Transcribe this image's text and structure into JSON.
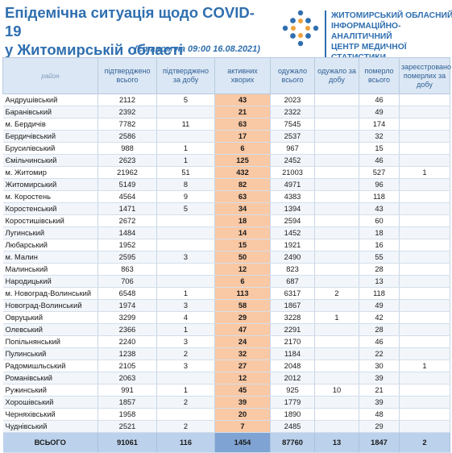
{
  "header": {
    "title_line1": "Епідемічна ситуація щодо COVID-19",
    "title_line2": "у Житомирській області",
    "status": "(станом на 09:00 16.08.2021)"
  },
  "org": {
    "line1": "ЖИТОМИРСЬКИЙ ОБЛАСНИЙ",
    "line2": "ІНФОРМАЦІЙНО-АНАЛІТИЧНИЙ",
    "line3": "ЦЕНТР МЕДИЧНОЇ СТАТИСТИКИ",
    "logo_icon": "diamond-dots-logo-icon",
    "colors": {
      "blue": "#2f6fb0",
      "orange": "#f2a23a"
    }
  },
  "table": {
    "headers": {
      "rayon": "район",
      "confirmed": "підтверджено всього",
      "confirmed_day": "підтверджено за добу",
      "active": "активних хворих",
      "recovered": "одужало всього",
      "recovered_day": "одужало за добу",
      "died": "померло всього",
      "died_registered": "зареєстровано померлих за добу"
    },
    "colors": {
      "active_cells": "#f9c8a4",
      "total_active": "#7fa3d3",
      "header_bg": "#dbe7f4"
    },
    "rows": [
      {
        "name": "Андрушівський",
        "confirmed": "2112",
        "confirmed_day": "5",
        "active": "43",
        "recovered": "2023",
        "recovered_day": "",
        "died": "46",
        "died_day": ""
      },
      {
        "name": "Баранівський",
        "confirmed": "2392",
        "confirmed_day": "",
        "active": "21",
        "recovered": "2322",
        "recovered_day": "",
        "died": "49",
        "died_day": ""
      },
      {
        "name": "м. Бердичів",
        "confirmed": "7782",
        "confirmed_day": "11",
        "active": "63",
        "recovered": "7545",
        "recovered_day": "",
        "died": "174",
        "died_day": ""
      },
      {
        "name": "Бердичівський",
        "confirmed": "2586",
        "confirmed_day": "",
        "active": "17",
        "recovered": "2537",
        "recovered_day": "",
        "died": "32",
        "died_day": ""
      },
      {
        "name": "Брусилівський",
        "confirmed": "988",
        "confirmed_day": "1",
        "active": "6",
        "recovered": "967",
        "recovered_day": "",
        "died": "15",
        "died_day": ""
      },
      {
        "name": "Ємільчинський",
        "confirmed": "2623",
        "confirmed_day": "1",
        "active": "125",
        "recovered": "2452",
        "recovered_day": "",
        "died": "46",
        "died_day": ""
      },
      {
        "name": "м. Житомир",
        "confirmed": "21962",
        "confirmed_day": "51",
        "active": "432",
        "recovered": "21003",
        "recovered_day": "",
        "died": "527",
        "died_day": "1"
      },
      {
        "name": "Житомирський",
        "confirmed": "5149",
        "confirmed_day": "8",
        "active": "82",
        "recovered": "4971",
        "recovered_day": "",
        "died": "96",
        "died_day": ""
      },
      {
        "name": "м. Коростень",
        "confirmed": "4564",
        "confirmed_day": "9",
        "active": "63",
        "recovered": "4383",
        "recovered_day": "",
        "died": "118",
        "died_day": ""
      },
      {
        "name": "Коростенський",
        "confirmed": "1471",
        "confirmed_day": "5",
        "active": "34",
        "recovered": "1394",
        "recovered_day": "",
        "died": "43",
        "died_day": ""
      },
      {
        "name": "Коростишівський",
        "confirmed": "2672",
        "confirmed_day": "",
        "active": "18",
        "recovered": "2594",
        "recovered_day": "",
        "died": "60",
        "died_day": ""
      },
      {
        "name": "Лугинський",
        "confirmed": "1484",
        "confirmed_day": "",
        "active": "14",
        "recovered": "1452",
        "recovered_day": "",
        "died": "18",
        "died_day": ""
      },
      {
        "name": "Любарський",
        "confirmed": "1952",
        "confirmed_day": "",
        "active": "15",
        "recovered": "1921",
        "recovered_day": "",
        "died": "16",
        "died_day": ""
      },
      {
        "name": "м. Малин",
        "confirmed": "2595",
        "confirmed_day": "3",
        "active": "50",
        "recovered": "2490",
        "recovered_day": "",
        "died": "55",
        "died_day": ""
      },
      {
        "name": "Малинський",
        "confirmed": "863",
        "confirmed_day": "",
        "active": "12",
        "recovered": "823",
        "recovered_day": "",
        "died": "28",
        "died_day": ""
      },
      {
        "name": "Народицький",
        "confirmed": "706",
        "confirmed_day": "",
        "active": "6",
        "recovered": "687",
        "recovered_day": "",
        "died": "13",
        "died_day": ""
      },
      {
        "name": "м. Новоград-Волинський",
        "confirmed": "6548",
        "confirmed_day": "1",
        "active": "113",
        "recovered": "6317",
        "recovered_day": "2",
        "died": "118",
        "died_day": ""
      },
      {
        "name": "Новоград-Волинський",
        "confirmed": "1974",
        "confirmed_day": "3",
        "active": "58",
        "recovered": "1867",
        "recovered_day": "",
        "died": "49",
        "died_day": ""
      },
      {
        "name": "Овруцький",
        "confirmed": "3299",
        "confirmed_day": "4",
        "active": "29",
        "recovered": "3228",
        "recovered_day": "1",
        "died": "42",
        "died_day": ""
      },
      {
        "name": "Олевський",
        "confirmed": "2366",
        "confirmed_day": "1",
        "active": "47",
        "recovered": "2291",
        "recovered_day": "",
        "died": "28",
        "died_day": ""
      },
      {
        "name": "Попільнянський",
        "confirmed": "2240",
        "confirmed_day": "3",
        "active": "24",
        "recovered": "2170",
        "recovered_day": "",
        "died": "46",
        "died_day": ""
      },
      {
        "name": "Пулинський",
        "confirmed": "1238",
        "confirmed_day": "2",
        "active": "32",
        "recovered": "1184",
        "recovered_day": "",
        "died": "22",
        "died_day": ""
      },
      {
        "name": "Радомишльський",
        "confirmed": "2105",
        "confirmed_day": "3",
        "active": "27",
        "recovered": "2048",
        "recovered_day": "",
        "died": "30",
        "died_day": "1"
      },
      {
        "name": "Романівський",
        "confirmed": "2063",
        "confirmed_day": "",
        "active": "12",
        "recovered": "2012",
        "recovered_day": "",
        "died": "39",
        "died_day": ""
      },
      {
        "name": "Ружинський",
        "confirmed": "991",
        "confirmed_day": "1",
        "active": "45",
        "recovered": "925",
        "recovered_day": "10",
        "died": "21",
        "died_day": ""
      },
      {
        "name": "Хорошівський",
        "confirmed": "1857",
        "confirmed_day": "2",
        "active": "39",
        "recovered": "1779",
        "recovered_day": "",
        "died": "39",
        "died_day": ""
      },
      {
        "name": "Черняхівський",
        "confirmed": "1958",
        "confirmed_day": "",
        "active": "20",
        "recovered": "1890",
        "recovered_day": "",
        "died": "48",
        "died_day": ""
      },
      {
        "name": "Чуднівський",
        "confirmed": "2521",
        "confirmed_day": "2",
        "active": "7",
        "recovered": "2485",
        "recovered_day": "",
        "died": "29",
        "died_day": ""
      }
    ],
    "total": {
      "label": "ВСЬОГО",
      "confirmed": "91061",
      "confirmed_day": "116",
      "active": "1454",
      "recovered": "87760",
      "recovered_day": "13",
      "died": "1847",
      "died_day": "2"
    }
  }
}
